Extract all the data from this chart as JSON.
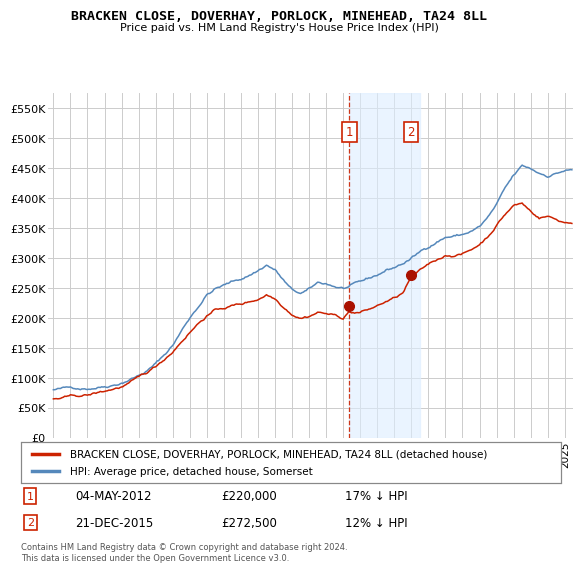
{
  "title": "BRACKEN CLOSE, DOVERHAY, PORLOCK, MINEHEAD, TA24 8LL",
  "subtitle": "Price paid vs. HM Land Registry's House Price Index (HPI)",
  "background_color": "#ffffff",
  "plot_bg_color": "#ffffff",
  "grid_color": "#cccccc",
  "ylim": [
    0,
    575000
  ],
  "yticks": [
    0,
    50000,
    100000,
    150000,
    200000,
    250000,
    300000,
    350000,
    400000,
    450000,
    500000,
    550000
  ],
  "ytick_labels": [
    "£0",
    "£50K",
    "£100K",
    "£150K",
    "£200K",
    "£250K",
    "£300K",
    "£350K",
    "£400K",
    "£450K",
    "£500K",
    "£550K"
  ],
  "hpi_color": "#5588bb",
  "property_color": "#cc2200",
  "sale1_date": "04-MAY-2012",
  "sale1_price": 220000,
  "sale1_label": "1",
  "sale1_pct": "17% ↓ HPI",
  "sale2_date": "21-DEC-2015",
  "sale2_price": 272500,
  "sale2_label": "2",
  "sale2_pct": "12% ↓ HPI",
  "legend_property": "BRACKEN CLOSE, DOVERHAY, PORLOCK, MINEHEAD, TA24 8LL (detached house)",
  "legend_hpi": "HPI: Average price, detached house, Somerset",
  "footer": "Contains HM Land Registry data © Crown copyright and database right 2024.\nThis data is licensed under the Open Government Licence v3.0.",
  "sale1_x": 2012.37,
  "sale2_x": 2015.97,
  "marker_color": "#aa1100",
  "shade_color": "#ddeeff",
  "shade_alpha": 0.6,
  "shade_x1": 2012.37,
  "shade_x2": 2016.5,
  "xlim_left": 1994.7,
  "xlim_right": 2025.5
}
